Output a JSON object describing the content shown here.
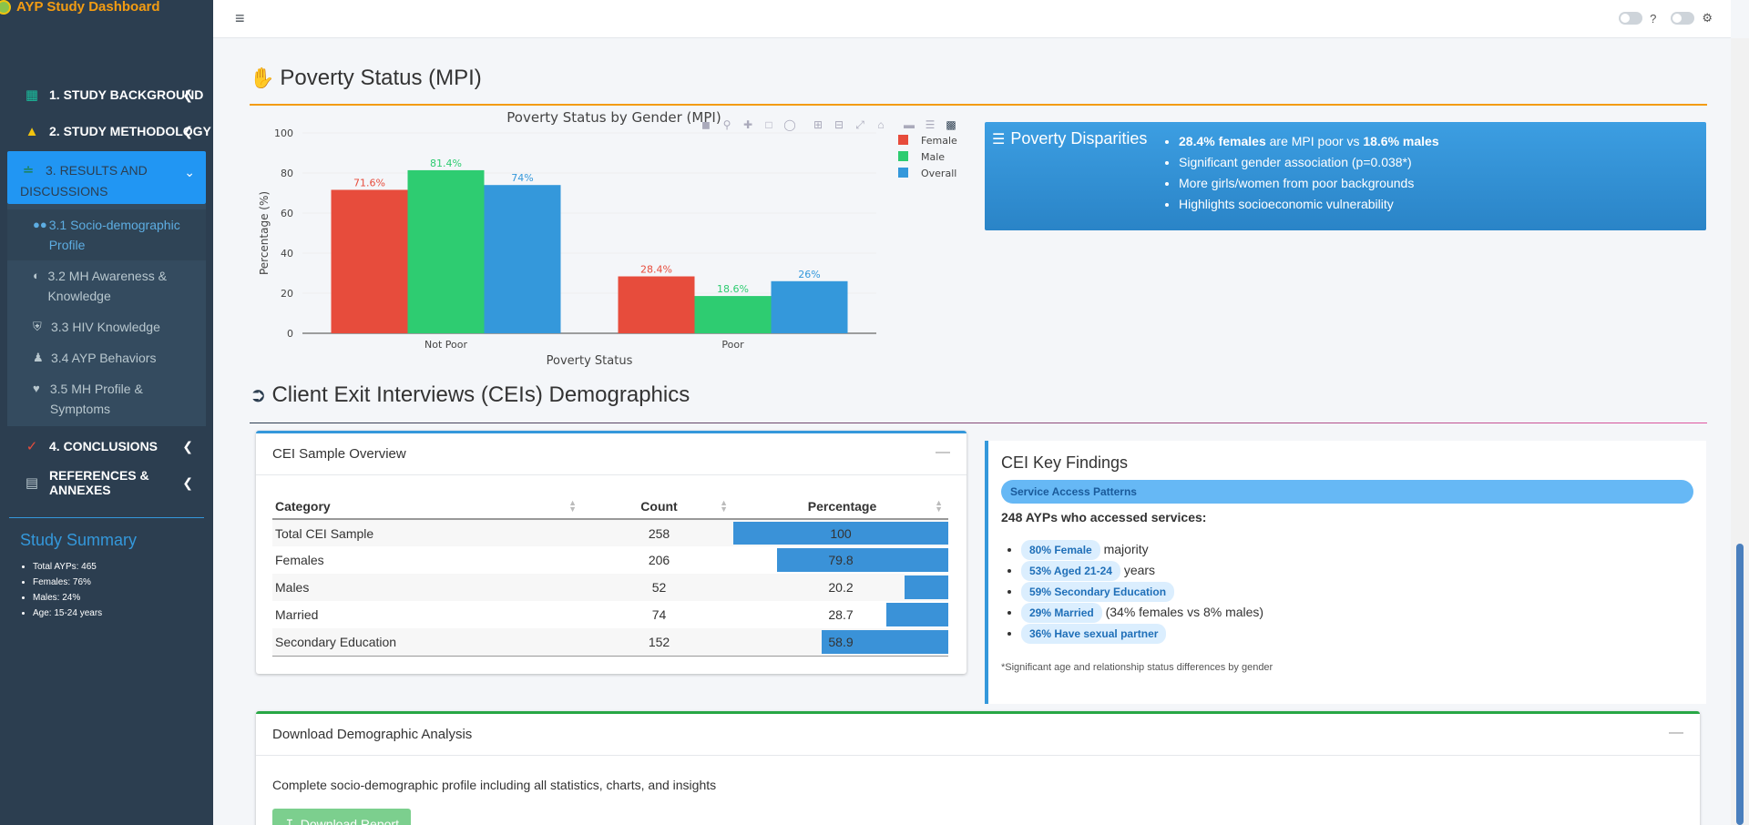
{
  "app": {
    "title": "AYP Study Dashboard"
  },
  "sidebar": {
    "items": [
      {
        "label": "1. STUDY BACKGROUND",
        "icon": "book-icon",
        "color": "#1abc9c"
      },
      {
        "label": "2. STUDY METHODOLOGY",
        "icon": "flask-icon",
        "color": "#f1c40f"
      },
      {
        "label": "3. RESULTS AND DISCUSSIONS",
        "icon": "chart-line-icon",
        "color": "#1a7f37"
      },
      {
        "label": "4. CONCLUSIONS",
        "icon": "check-circle-icon",
        "color": "#e74c3c"
      },
      {
        "label": "REFERENCES & ANNEXES",
        "icon": "file-icon",
        "color": "#b8c7ce"
      }
    ],
    "submenu": [
      {
        "label": "3.1 Socio-demographic Profile",
        "icon": "users-icon"
      },
      {
        "label": "3.2 MH Awareness & Knowledge",
        "icon": "brain-icon"
      },
      {
        "label": "3.3 HIV Knowledge",
        "icon": "shield-icon"
      },
      {
        "label": "3.4 AYP Behaviors",
        "icon": "user-check-icon"
      },
      {
        "label": "3.5 MH Profile & Symptoms",
        "icon": "heart-pulse-icon"
      }
    ],
    "summary": {
      "title": "Study Summary",
      "lines": [
        "Total AYPs: 465",
        "Females: 76%",
        "Males: 24%",
        "Age: 15-24 years"
      ]
    }
  },
  "header": {
    "help": "?"
  },
  "poverty": {
    "heading": "Poverty Status (MPI)",
    "icon": "hand-dollar-icon"
  },
  "chart_data": {
    "type": "bar",
    "title": "Poverty Status by Gender (MPI)",
    "xlabel": "Poverty Status",
    "ylabel": "Percentage (%)",
    "ylim": [
      0,
      100
    ],
    "yticks": [
      0,
      20,
      40,
      60,
      80,
      100
    ],
    "categories": [
      "Not Poor",
      "Poor"
    ],
    "series": [
      {
        "name": "Female",
        "values": [
          71.6,
          28.4
        ],
        "labels": [
          "71.6%",
          "28.4%"
        ],
        "color": "#e74c3c"
      },
      {
        "name": "Male",
        "values": [
          81.4,
          18.6
        ],
        "labels": [
          "81.4%",
          "18.6%"
        ],
        "color": "#2ecc71"
      },
      {
        "name": "Overall",
        "values": [
          74,
          26
        ],
        "labels": [
          "74%",
          "26%"
        ],
        "color": "#3498db"
      }
    ],
    "legend": "top-right",
    "grid": true
  },
  "disparities": {
    "title": "Poverty Disparities",
    "bullets": [
      {
        "b1": "28.4% females",
        "t1": " are MPI poor vs ",
        "b2": "18.6% males"
      },
      {
        "t1": "Significant gender association (p=0.038*)"
      },
      {
        "t1": "More girls/women from poor backgrounds"
      },
      {
        "t1": "Highlights socioeconomic vulnerability"
      }
    ]
  },
  "cei": {
    "heading": "Client Exit Interviews (CEIs) Demographics",
    "icon": "sign-out-icon",
    "overview": {
      "title": "CEI Sample Overview",
      "columns": [
        "Category",
        "Count",
        "Percentage"
      ],
      "rows": [
        {
          "category": "Total CEI Sample",
          "count": "258",
          "pct": "100",
          "pct_value": 100
        },
        {
          "category": "Females",
          "count": "206",
          "pct": "79.8",
          "pct_value": 79.8
        },
        {
          "category": "Males",
          "count": "52",
          "pct": "20.2",
          "pct_value": 20.2
        },
        {
          "category": "Married",
          "count": "74",
          "pct": "28.7",
          "pct_value": 28.7
        },
        {
          "category": "Secondary Education",
          "count": "152",
          "pct": "58.9",
          "pct_value": 58.9
        }
      ]
    },
    "findings": {
      "title": "CEI Key Findings",
      "banner": "Service Access Patterns",
      "subtitle": "248 AYPs who accessed services:",
      "items": [
        {
          "tag": "80% Female",
          "text": " majority"
        },
        {
          "tag": "53% Aged 21-24",
          "text": " years"
        },
        {
          "tag": "59% Secondary Education",
          "text": ""
        },
        {
          "tag": "29% Married",
          "text": " (34% females vs 8% males)"
        },
        {
          "tag": "36% Have sexual partner",
          "text": ""
        }
      ],
      "note": "*Significant age and relationship status differences by gender"
    }
  },
  "download": {
    "title": "Download Demographic Analysis",
    "text": "Complete socio-demographic profile including all statistics, charts, and insights",
    "button": "Download Report"
  }
}
